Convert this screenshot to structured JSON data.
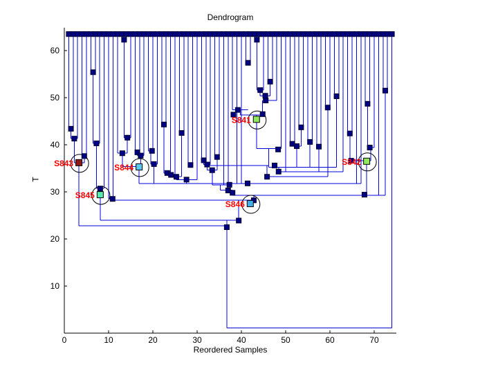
{
  "title": "Dendrogram",
  "xlabel": "Reordered Samples",
  "ylabel": "T",
  "colors": {
    "line_blue": "#0000DC",
    "node_navy": "#000082",
    "node_edge": "#000030",
    "label_red": "#FF0000",
    "axis_black": "#000000",
    "background": "#FFFFFF"
  },
  "chart_data": {
    "type": "dendrogram",
    "title": "Dendrogram",
    "xlabel": "Reordered Samples",
    "ylabel": "T",
    "x_ticks": [
      0,
      10,
      20,
      30,
      40,
      50,
      60,
      70
    ],
    "y_ticks": [
      10,
      20,
      30,
      40,
      50,
      60
    ],
    "x_range": [
      0,
      75
    ],
    "y_range": [
      0,
      64.9
    ],
    "grid": false,
    "leaves": {
      "x_start": 1,
      "count": 74,
      "t": 63.5
    },
    "leaf_drop_t": [
      43.4,
      43.4,
      41.3,
      37.6,
      37.6,
      55.4,
      55.4,
      40.3,
      30.7,
      28.6,
      28.6,
      38.2,
      62.3,
      62.3,
      41.5,
      38.4,
      38.4,
      37.7,
      38.7,
      38.7,
      35.9,
      44.3,
      44.3,
      34.0,
      33.6,
      42.5,
      42.5,
      35.7,
      35.7,
      32.6,
      36.7,
      36.7,
      35.8,
      37.4,
      37.4,
      31.5,
      31.5,
      47.4,
      31.8,
      31.8,
      57.4,
      57.4,
      62.3,
      62.3,
      51.6,
      53.4,
      53.4,
      49.4,
      39.2,
      34.3,
      40.2,
      40.2,
      43.7,
      43.7,
      40.6,
      40.6,
      39.6,
      39.6,
      47.9,
      47.9,
      50.3,
      50.3,
      34.3,
      42.4,
      42.4,
      31.8,
      31.8,
      48.7,
      48.7,
      39.4,
      29.3,
      51.5,
      51.5,
      1.1
    ],
    "hlines": [
      [
        1,
        2,
        43.4
      ],
      [
        1.5,
        3,
        41.3
      ],
      [
        4,
        5,
        37.6
      ],
      [
        2.25,
        4.5,
        36.2
      ],
      [
        6,
        7,
        55.4
      ],
      [
        6.5,
        8,
        40.3
      ],
      [
        7.25,
        9,
        30.7
      ],
      [
        10,
        11,
        28.6
      ],
      [
        13,
        14,
        62.3
      ],
      [
        13.5,
        15,
        41.5
      ],
      [
        12,
        14.25,
        38.2
      ],
      [
        16,
        17,
        38.4
      ],
      [
        16.5,
        18,
        37.7
      ],
      [
        13.1,
        17.25,
        35.4
      ],
      [
        19,
        20,
        38.7
      ],
      [
        19.5,
        21,
        35.9
      ],
      [
        22,
        23,
        44.3
      ],
      [
        22.5,
        24,
        34.0
      ],
      [
        23.25,
        25,
        33.6
      ],
      [
        26,
        27,
        42.5
      ],
      [
        24.1,
        26.5,
        33.2
      ],
      [
        28,
        29,
        35.7
      ],
      [
        25.3,
        30,
        32.6
      ],
      [
        31,
        32,
        36.7
      ],
      [
        31.5,
        33,
        35.8
      ],
      [
        34,
        35,
        37.4
      ],
      [
        32.25,
        34.5,
        34.6
      ],
      [
        33.4,
        37,
        31.5
      ],
      [
        35.2,
        38,
        30.4
      ],
      [
        38,
        41.5,
        47.4
      ],
      [
        39.75,
        44.8,
        46.3
      ],
      [
        41,
        42,
        57.4
      ],
      [
        43,
        44,
        62.3
      ],
      [
        43.5,
        45,
        51.6
      ],
      [
        44.25,
        46.5,
        50.4
      ],
      [
        45.4,
        48,
        49.4
      ],
      [
        43.4,
        49,
        39.2
      ],
      [
        46,
        47,
        53.4
      ],
      [
        51,
        52,
        40.2
      ],
      [
        53,
        54,
        43.7
      ],
      [
        51.5,
        53.5,
        39.7
      ],
      [
        55,
        56,
        40.6
      ],
      [
        57,
        58,
        39.6
      ],
      [
        59,
        60,
        47.9
      ],
      [
        61,
        62,
        50.3
      ],
      [
        64,
        65,
        42.4
      ],
      [
        68,
        69,
        48.7
      ],
      [
        68.5,
        70,
        39.4
      ],
      [
        64.5,
        69.25,
        36.6
      ],
      [
        72,
        73,
        51.5
      ],
      [
        32.25,
        46.2,
        35.6
      ],
      [
        46.2,
        61.5,
        35.2
      ],
      [
        48.4,
        63,
        34.3
      ],
      [
        45.8,
        59.5,
        33.2
      ],
      [
        16.9,
        67,
        31.8
      ],
      [
        38,
        72.5,
        29.3
      ],
      [
        10.5,
        42.8,
        28.2
      ],
      [
        8.1,
        39.4,
        24.0
      ],
      [
        3.3,
        36.7,
        22.8
      ],
      [
        36.7,
        74,
        1.1
      ]
    ],
    "vlines": [
      [
        1.5,
        43.4,
        41.3
      ],
      [
        2.25,
        41.3,
        36.2
      ],
      [
        4.5,
        37.6,
        36.2
      ],
      [
        3.3,
        36.2,
        22.8
      ],
      [
        6.5,
        55.4,
        40.3
      ],
      [
        7.25,
        40.3,
        30.7
      ],
      [
        8.1,
        30.7,
        24.0
      ],
      [
        10.5,
        28.6,
        28.2
      ],
      [
        13.5,
        62.3,
        41.5
      ],
      [
        14.25,
        41.5,
        38.2
      ],
      [
        13.1,
        38.2,
        35.4
      ],
      [
        16.5,
        38.4,
        37.7
      ],
      [
        17.25,
        37.7,
        35.4
      ],
      [
        16.9,
        35.4,
        31.8
      ],
      [
        19.5,
        38.7,
        35.9
      ],
      [
        20.25,
        35.9,
        31.8
      ],
      [
        22.5,
        44.3,
        34.0
      ],
      [
        23.25,
        34.0,
        33.6
      ],
      [
        24.1,
        33.6,
        33.2
      ],
      [
        26.5,
        42.5,
        33.2
      ],
      [
        25.3,
        33.2,
        32.6
      ],
      [
        27.6,
        32.6,
        31.8
      ],
      [
        31.5,
        36.7,
        35.8
      ],
      [
        32.25,
        35.8,
        34.6
      ],
      [
        34.5,
        37.4,
        34.6
      ],
      [
        33.4,
        34.6,
        31.5
      ],
      [
        35.2,
        31.5,
        30.4
      ],
      [
        38,
        30.4,
        29.3
      ],
      [
        39.75,
        47.4,
        46.3
      ],
      [
        44.8,
        49.4,
        46.3
      ],
      [
        43.4,
        46.3,
        39.2
      ],
      [
        43.5,
        62.3,
        51.6
      ],
      [
        44.25,
        51.6,
        50.4
      ],
      [
        46.5,
        53.4,
        50.4
      ],
      [
        45.4,
        50.4,
        49.4
      ],
      [
        46.2,
        39.2,
        35.6
      ],
      [
        46.2,
        35.6,
        35.2
      ],
      [
        45.8,
        35.6,
        33.2
      ],
      [
        48.4,
        35.2,
        34.3
      ],
      [
        51.5,
        40.2,
        39.7
      ],
      [
        53.5,
        43.7,
        39.7
      ],
      [
        52.5,
        39.7,
        35.2
      ],
      [
        55.5,
        40.6,
        35.2
      ],
      [
        57.5,
        39.6,
        34.3
      ],
      [
        59.5,
        47.9,
        33.2
      ],
      [
        61.5,
        50.3,
        35.2
      ],
      [
        64.5,
        42.4,
        36.6
      ],
      [
        69.25,
        39.4,
        36.6
      ],
      [
        68.5,
        48.7,
        39.4
      ],
      [
        68.3,
        36.6,
        29.3
      ],
      [
        72.5,
        51.5,
        29.3
      ],
      [
        42.8,
        29.3,
        28.2
      ],
      [
        39.4,
        28.2,
        24.0
      ],
      [
        36.7,
        24.0,
        22.8
      ],
      [
        36.7,
        22.8,
        1.1
      ]
    ],
    "nodes": [
      [
        1.5,
        43.4
      ],
      [
        2.25,
        41.3
      ],
      [
        4.5,
        37.6
      ],
      [
        6.5,
        55.4
      ],
      [
        7.25,
        40.3
      ],
      [
        8.1,
        30.7
      ],
      [
        10.9,
        28.5
      ],
      [
        13.5,
        62.3
      ],
      [
        14.25,
        41.5
      ],
      [
        13.1,
        38.2
      ],
      [
        16.5,
        38.4
      ],
      [
        17.25,
        37.7
      ],
      [
        19.8,
        38.7
      ],
      [
        20.25,
        35.9
      ],
      [
        22.5,
        44.3
      ],
      [
        23.25,
        34.0
      ],
      [
        24.1,
        33.6
      ],
      [
        26.5,
        42.5
      ],
      [
        25.3,
        33.2
      ],
      [
        27.6,
        32.6
      ],
      [
        28.5,
        35.7
      ],
      [
        31.5,
        36.7
      ],
      [
        32.25,
        35.8
      ],
      [
        33.4,
        34.6
      ],
      [
        34.5,
        37.4
      ],
      [
        37.3,
        31.5
      ],
      [
        37,
        30.3
      ],
      [
        38,
        29.8
      ],
      [
        41.4,
        31.8
      ],
      [
        39.2,
        47.4
      ],
      [
        38.2,
        46.4
      ],
      [
        44.8,
        46.5
      ],
      [
        41.5,
        57.4
      ],
      [
        43.5,
        62.3
      ],
      [
        44.25,
        51.6
      ],
      [
        45.4,
        50.4
      ],
      [
        45.5,
        49.4
      ],
      [
        46.5,
        53.4
      ],
      [
        48.3,
        39.0
      ],
      [
        47.5,
        35.6
      ],
      [
        48.4,
        34.3
      ],
      [
        45.8,
        33.2
      ],
      [
        51.5,
        40.2
      ],
      [
        52.5,
        39.7
      ],
      [
        53.5,
        43.7
      ],
      [
        55.5,
        40.6
      ],
      [
        57.5,
        39.6
      ],
      [
        59.5,
        47.9
      ],
      [
        61.5,
        50.3
      ],
      [
        64.5,
        42.4
      ],
      [
        64.8,
        36.6
      ],
      [
        68.5,
        48.7
      ],
      [
        69,
        39.4
      ],
      [
        67.8,
        29.4
      ],
      [
        72.5,
        51.5
      ],
      [
        42.8,
        28.2
      ],
      [
        39.4,
        23.9
      ],
      [
        36.7,
        22.5
      ]
    ],
    "labeled_nodes": [
      {
        "label": "S841",
        "x": 43.4,
        "t": 45.4,
        "color": "#8FE95F"
      },
      {
        "label": "S842",
        "x": 68.3,
        "t": 36.5,
        "color": "#8FE95F"
      },
      {
        "label": "S843",
        "x": 3.3,
        "t": 36.2,
        "color": "#8E1A1A"
      },
      {
        "label": "S844",
        "x": 16.9,
        "t": 35.3,
        "color": "#5BC8F0"
      },
      {
        "label": "S845",
        "x": 8.1,
        "t": 29.4,
        "color": "#57EBB0"
      },
      {
        "label": "S846",
        "x": 42.0,
        "t": 27.5,
        "color": "#45AEE8"
      }
    ]
  }
}
